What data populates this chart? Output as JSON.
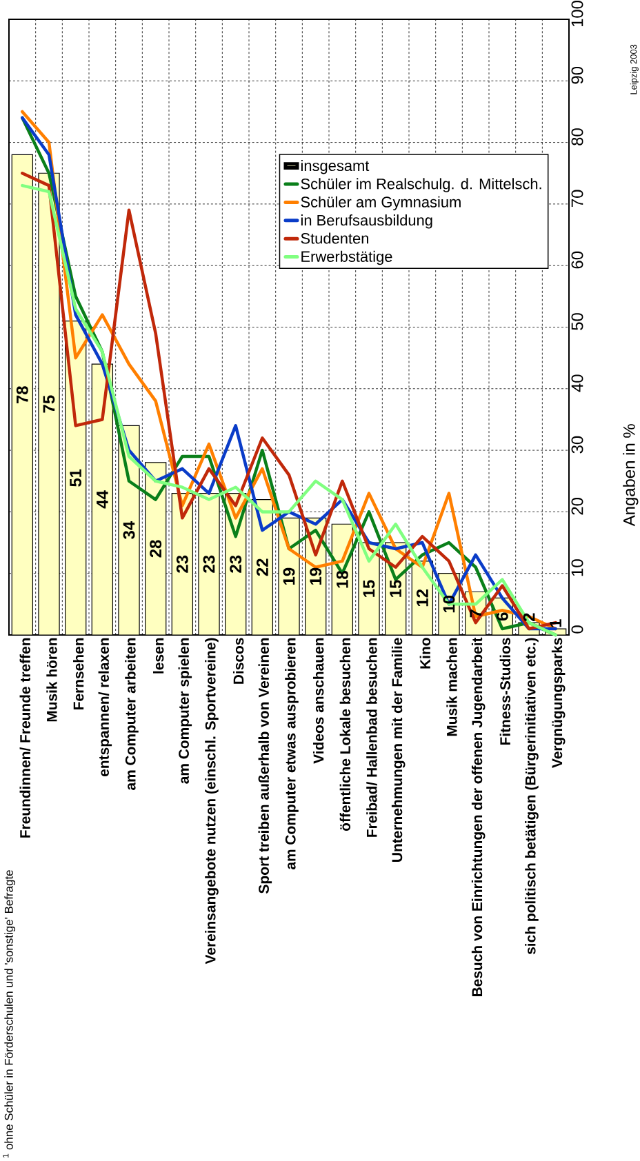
{
  "chart_data": {
    "type": "bar",
    "categories": [
      "Freundinnen/ Freunde treffen",
      "Musik hören",
      "Fernsehen",
      "entspannen/ relaxen",
      "am Computer arbeiten",
      "lesen",
      "am Computer spielen",
      "Vereinsangebote nutzen (einschl. Sportvereine)",
      "Discos",
      "Sport treiben außerhalb von Vereinen",
      "am Computer etwas ausprobieren",
      "Videos anschauen",
      "öffentliche Lokale besuchen",
      "Freibad/ Hallenbad besuchen",
      "Unternehmungen mit der Familie",
      "Kino",
      "Musik machen",
      "Besuch von Einrichtungen der offenen Jugendarbeit",
      "Fitness-Studios",
      "sich politisch betätigen (Bürgerinitiativen etc.)",
      "Vergnügungsparks"
    ],
    "series": [
      {
        "name": "insgesamt",
        "color": "#ffffc0",
        "values": [
          78,
          75,
          51,
          44,
          34,
          28,
          23,
          23,
          23,
          22,
          19,
          19,
          18,
          15,
          15,
          12,
          10,
          7,
          6,
          2,
          1
        ],
        "value_labels": [
          "78",
          "75",
          "51",
          "44",
          "34",
          "28",
          "23",
          "23",
          "23",
          "22",
          "19",
          "19",
          "18",
          "15",
          "15",
          "12",
          "10",
          "7",
          "6",
          "2",
          "1"
        ]
      },
      {
        "name": "Schüler im Realschulg. d. Mittelsch.",
        "type": "line",
        "color": "#0a7f1a",
        "values": [
          84,
          75,
          55,
          46,
          25,
          22,
          29,
          29,
          16,
          30,
          14,
          17,
          10,
          20,
          9,
          13,
          15,
          11,
          1,
          2,
          0
        ]
      },
      {
        "name": "Schüler am Gymnasium",
        "type": "line",
        "color": "#ff7f00",
        "values": [
          85,
          80,
          45,
          52,
          44,
          38,
          21,
          31,
          19,
          27,
          14,
          11,
          12,
          23,
          14,
          11,
          23,
          3,
          4,
          3,
          1
        ]
      },
      {
        "name": "in Berufsausbildung",
        "type": "line",
        "color": "#0a3cc8",
        "values": [
          84,
          78,
          52,
          44,
          30,
          25,
          27,
          23,
          34,
          17,
          20,
          18,
          22,
          15,
          14,
          15,
          5,
          13,
          6,
          1,
          1
        ]
      },
      {
        "name": "Studenten",
        "type": "line",
        "color": "#c0280a",
        "values": [
          75,
          73,
          34,
          35,
          69,
          49,
          19,
          27,
          21,
          32,
          26,
          13,
          25,
          14,
          11,
          16,
          12,
          2,
          8,
          1,
          2
        ]
      },
      {
        "name": "Erwerbstätige",
        "type": "line",
        "color": "#80ff80",
        "values": [
          73,
          72,
          53,
          46,
          29,
          25,
          24,
          22,
          24,
          20,
          20,
          25,
          22,
          12,
          18,
          11,
          5,
          5,
          9,
          2,
          0
        ]
      }
    ],
    "ylim": [
      0,
      100
    ],
    "yticks": [
      0,
      10,
      20,
      30,
      40,
      50,
      60,
      70,
      80,
      90,
      100
    ],
    "ylabel": "Angaben in %",
    "grid": true,
    "legend": "top right",
    "line_style": "solid",
    "annotations": [
      "$^{1}$ ohne Schüler in Förderschulen und 'sonstige' Befragte",
      "Leipzig 2003"
    ]
  }
}
